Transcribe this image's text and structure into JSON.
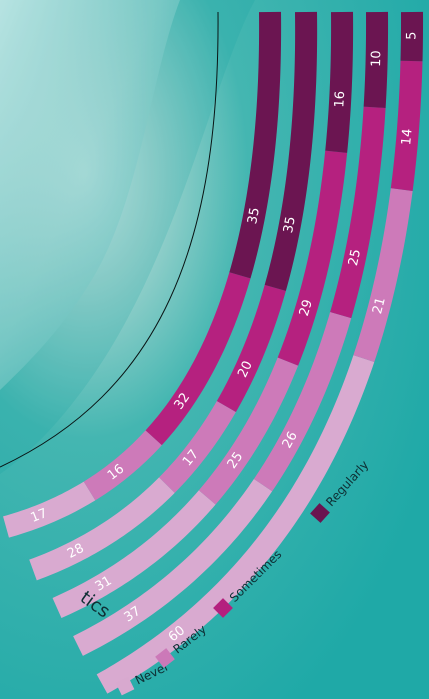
{
  "chart_data": {
    "type": "bar",
    "stacked": true,
    "orientation": "curved-radial",
    "categories": [
      "",
      "",
      "",
      "",
      ""
    ],
    "series": [
      {
        "name": "Never",
        "values": [
          17,
          28,
          31,
          37,
          60
        ]
      },
      {
        "name": "Rarely",
        "values": [
          16,
          17,
          25,
          26,
          21
        ]
      },
      {
        "name": "Sometimes",
        "values": [
          32,
          20,
          29,
          25,
          14
        ]
      },
      {
        "name": "Regularly",
        "values": [
          35,
          35,
          16,
          10,
          5
        ]
      }
    ],
    "colors": {
      "Never": "#d8a9cf",
      "Rarely": "#cc79b8",
      "Sometimes": "#b4207e",
      "Regularly": "#6a1450"
    },
    "partial_text": "tics",
    "legend": {
      "placement": "bottom",
      "labels": [
        "Never",
        "Rarely",
        "Sometimes",
        "Regularly"
      ]
    }
  }
}
